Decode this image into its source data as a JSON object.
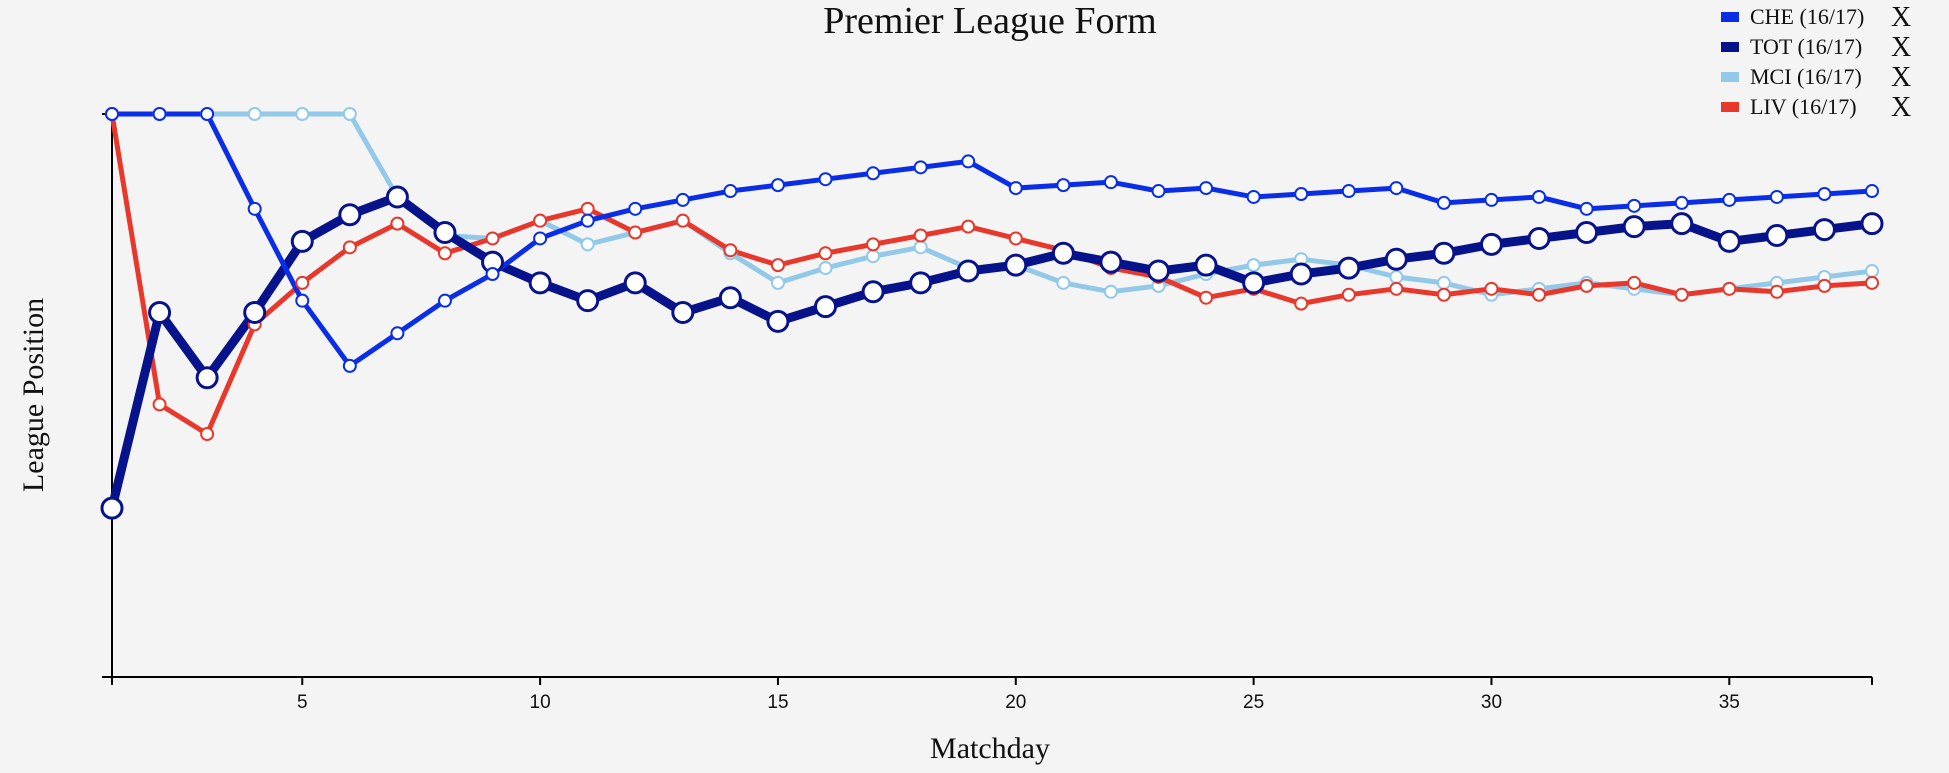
{
  "chart_data": {
    "type": "line",
    "title": "Premier League Form",
    "xlabel": "Matchday",
    "ylabel": "League Position",
    "xlim": [
      1,
      38
    ],
    "xticks": [
      5,
      10,
      15,
      20,
      25,
      30,
      35
    ],
    "y_scale": "inverted (position 1 at top)",
    "ylim": [
      20,
      1
    ],
    "grid": false,
    "legend_position": "top-right",
    "series": [
      {
        "name": "CHE (16/17)",
        "color": "#0a2ee8",
        "style": "thin",
        "x": [
          1,
          2,
          3,
          4,
          5,
          6,
          7,
          8,
          9,
          10,
          11,
          12,
          13,
          14,
          15,
          16,
          17,
          18,
          19,
          20,
          21,
          22,
          23,
          24,
          25,
          26,
          27,
          28,
          29,
          30,
          31,
          32,
          33,
          34,
          35,
          36,
          37,
          38
        ],
        "values": [
          1,
          1,
          1,
          4.2,
          7.3,
          9.5,
          8.4,
          7.3,
          6.4,
          5.2,
          4.6,
          4.2,
          3.9,
          3.6,
          3.4,
          3.2,
          3.0,
          2.8,
          2.6,
          3.5,
          3.4,
          3.3,
          3.6,
          3.5,
          3.8,
          3.7,
          3.6,
          3.5,
          4.0,
          3.9,
          3.8,
          4.2,
          4.1,
          4.0,
          3.9,
          3.8,
          3.7,
          3.6
        ]
      },
      {
        "name": "TOT (16/17)",
        "color": "#07138b",
        "style": "thick",
        "x": [
          1,
          2,
          3,
          4,
          5,
          6,
          7,
          8,
          9,
          10,
          11,
          12,
          13,
          14,
          15,
          16,
          17,
          18,
          19,
          20,
          21,
          22,
          23,
          24,
          25,
          26,
          27,
          28,
          29,
          30,
          31,
          32,
          33,
          34,
          35,
          36,
          37,
          38
        ],
        "values": [
          14.3,
          7.7,
          9.9,
          7.7,
          5.3,
          4.4,
          3.8,
          5.0,
          6.0,
          6.7,
          7.3,
          6.7,
          7.7,
          7.2,
          8.0,
          7.5,
          7.0,
          6.7,
          6.3,
          6.1,
          5.7,
          6.0,
          6.3,
          6.1,
          6.7,
          6.4,
          6.2,
          5.9,
          5.7,
          5.4,
          5.2,
          5.0,
          4.8,
          4.7,
          5.3,
          5.1,
          4.9,
          4.7
        ]
      },
      {
        "name": "MCI (16/17)",
        "color": "#92c9e8",
        "style": "thin",
        "x": [
          1,
          2,
          3,
          4,
          5,
          6,
          7,
          8,
          9,
          10,
          11,
          12,
          13,
          14,
          15,
          16,
          17,
          18,
          19,
          20,
          21,
          22,
          23,
          24,
          25,
          26,
          27,
          28,
          29,
          30,
          31,
          32,
          33,
          34,
          35,
          36,
          37,
          38
        ],
        "values": [
          1,
          1,
          1,
          1,
          1,
          1,
          3.8,
          5.1,
          5.2,
          4.6,
          5.4,
          5.0,
          4.6,
          5.7,
          6.7,
          6.2,
          5.8,
          5.5,
          6.2,
          6.1,
          6.7,
          7.0,
          6.8,
          6.4,
          6.1,
          5.9,
          6.1,
          6.5,
          6.7,
          7.1,
          6.9,
          6.7,
          6.9,
          7.1,
          6.9,
          6.7,
          6.5,
          6.3
        ]
      },
      {
        "name": "LIV (16/17)",
        "color": "#e8382b",
        "style": "thin",
        "x": [
          1,
          2,
          3,
          4,
          5,
          6,
          7,
          8,
          9,
          10,
          11,
          12,
          13,
          14,
          15,
          16,
          17,
          18,
          19,
          20,
          21,
          22,
          23,
          24,
          25,
          26,
          27,
          28,
          29,
          30,
          31,
          32,
          33,
          34,
          35,
          36,
          37,
          38
        ],
        "values": [
          1,
          10.8,
          11.8,
          8.1,
          6.7,
          5.5,
          4.7,
          5.7,
          5.2,
          4.6,
          4.2,
          5.0,
          4.6,
          5.6,
          6.1,
          5.7,
          5.4,
          5.1,
          4.8,
          5.2,
          5.6,
          6.2,
          6.5,
          7.2,
          6.9,
          7.4,
          7.1,
          6.9,
          7.1,
          6.9,
          7.1,
          6.8,
          6.7,
          7.1,
          6.9,
          7.0,
          6.8,
          6.7
        ]
      }
    ]
  },
  "legend": {
    "remove_glyph": "X"
  }
}
